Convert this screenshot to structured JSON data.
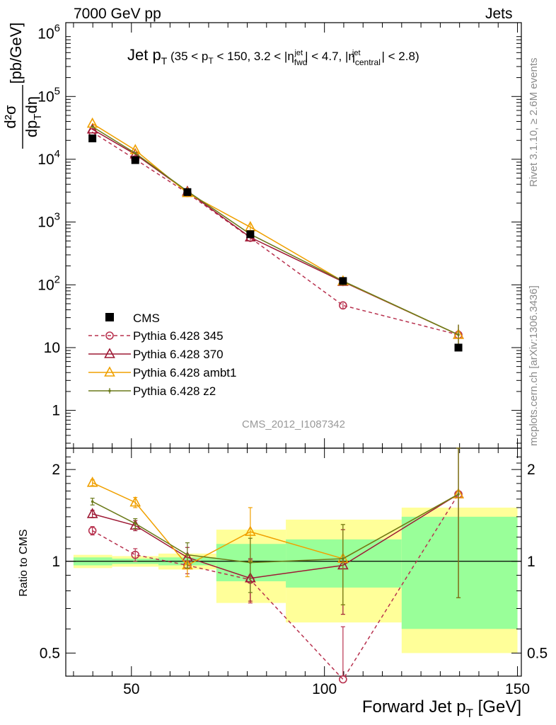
{
  "header": {
    "left": "7000 GeV pp",
    "right": "Jets",
    "side_top": "Rivet 3.1.10, ≥ 2.6M events",
    "side_bottom": "mcplots.cern.ch [arXiv:1306.3436]"
  },
  "chart_data": {
    "type": "line",
    "title": "Jet pT (35 < pT < 150, 3.2 < |ηjet fwd| < 4.7, |ηjet central| < 2.8)",
    "analysis_tag": "CMS_2012_I1087342",
    "xlabel": "Forward Jet pT [GeV]",
    "ylabel": "d²σ / dpT dη [pb/GeV]",
    "ratio_ylabel": "Ratio to CMS",
    "xlim": [
      33,
      151
    ],
    "ylim_log": [
      0.25,
      1500000
    ],
    "ratio_ylim": [
      0.42,
      2.35
    ],
    "x_ticks": [
      "50",
      "100",
      "150"
    ],
    "y_tick_labels": [
      "1",
      "10",
      "10^2",
      "10^3",
      "10^4",
      "10^5",
      "10^6"
    ],
    "ratio_ticks": [
      "0.5",
      "1",
      "2"
    ],
    "legend_position": "lower-left",
    "bins": [
      [
        35,
        45
      ],
      [
        45,
        57
      ],
      [
        57,
        72
      ],
      [
        72,
        90
      ],
      [
        90,
        120
      ],
      [
        120,
        150
      ]
    ],
    "x": [
      39.9,
      51.0,
      64.5,
      80.8,
      104.8,
      134.7
    ],
    "data": {
      "name": "CMS",
      "values": [
        21500,
        9700,
        3000,
        640,
        115,
        10
      ],
      "band_stat": [
        0.03,
        0.02,
        0.03,
        0.14,
        0.18,
        0.4
      ],
      "band_total": [
        0.05,
        0.04,
        0.06,
        0.27,
        0.37,
        0.5
      ]
    },
    "series": [
      {
        "name": "Pythia 6.428 345",
        "color": "#b8324f",
        "marker": "circle",
        "dash": true,
        "values": [
          27000,
          10000,
          2900,
          560,
          47,
          16
        ],
        "ratio": [
          1.26,
          1.05,
          0.97,
          0.87,
          0.41,
          1.66
        ],
        "ratio_err": [
          0.04,
          0.05,
          0.06,
          0.14,
          0.2,
          0.9
        ]
      },
      {
        "name": "Pythia 6.428 370",
        "color": "#9e1a35",
        "marker": "triangle",
        "dash": false,
        "values": [
          30000,
          12000,
          3050,
          570,
          112,
          16
        ],
        "ratio": [
          1.43,
          1.31,
          1.03,
          0.88,
          0.97,
          1.66
        ],
        "ratio_err": [
          0.04,
          0.05,
          0.08,
          0.14,
          0.3,
          0.9
        ]
      },
      {
        "name": "Pythia 6.428 ambt1",
        "color": "#f0a000",
        "marker": "triangle",
        "dash": false,
        "values": [
          37000,
          14000,
          2900,
          830,
          114,
          16
        ],
        "ratio": [
          1.81,
          1.56,
          0.97,
          1.25,
          1.02,
          1.66
        ],
        "ratio_err": [
          0.04,
          0.06,
          0.08,
          0.25,
          0.3,
          0.9
        ]
      },
      {
        "name": "Pythia 6.428 z2",
        "color": "#6b7a1a",
        "marker": "dot",
        "dash": false,
        "values": [
          33000,
          12500,
          3100,
          640,
          115,
          16
        ],
        "ratio": [
          1.57,
          1.33,
          1.05,
          0.99,
          1.02,
          1.66
        ],
        "ratio_err": [
          0.04,
          0.05,
          0.1,
          0.2,
          0.3,
          0.9
        ]
      }
    ]
  }
}
